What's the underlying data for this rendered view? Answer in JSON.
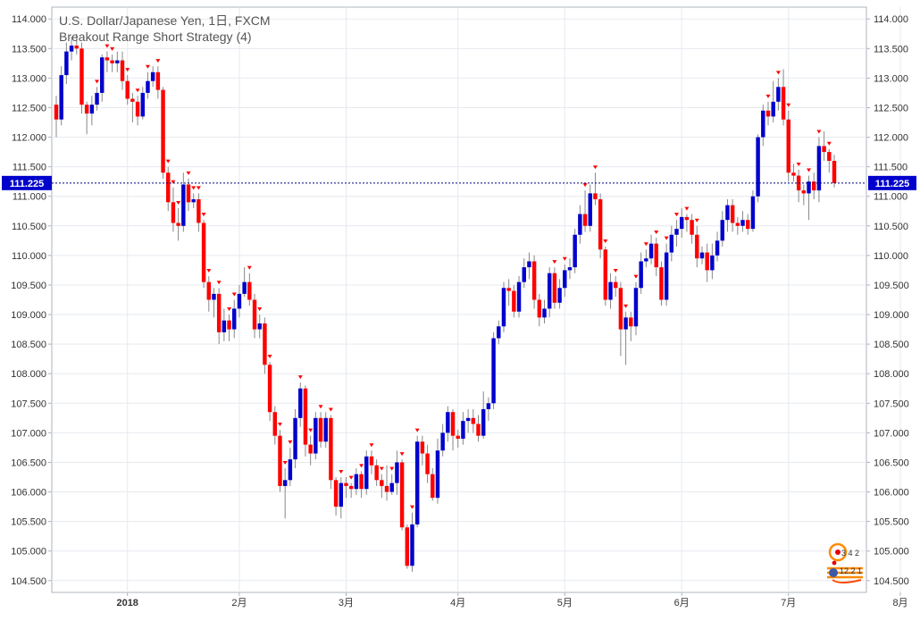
{
  "header": {
    "title": "U.S. Dollar/Japanese Yen, 1日, FXCM",
    "subtitle": "Breakout Range Short Strategy (4)"
  },
  "colors": {
    "up": "#0000cc",
    "down": "#ff0000",
    "neutral_body": "#8a00aa",
    "wick": "#888888",
    "grid": "#e6e9ef",
    "price_line": "#000080",
    "price_label_bg": "#0000cc",
    "signal": "#ff0000"
  },
  "logo": {
    "top_digits": "3 4 2",
    "bottom_digits": "12.2 1"
  },
  "chart_data": {
    "type": "candlestick",
    "title": "U.S. Dollar/Japanese Yen, 1日, FXCM",
    "subtitle": "Breakout Range Short Strategy (4)",
    "ylim": [
      104.3,
      114.2
    ],
    "y_ticks": [
      "114.000",
      "113.500",
      "113.000",
      "112.500",
      "112.000",
      "111.500",
      "111.000",
      "110.500",
      "110.000",
      "109.500",
      "109.000",
      "108.500",
      "108.000",
      "107.500",
      "107.000",
      "106.500",
      "106.000",
      "105.500",
      "105.000",
      "104.500"
    ],
    "x_labels": [
      "2018",
      "2月",
      "3月",
      "4月",
      "5月",
      "6月",
      "7月",
      "8月"
    ],
    "x_label_index": [
      14,
      36,
      57,
      79,
      100,
      123,
      144,
      166
    ],
    "current_price": "111.225",
    "grid": true,
    "candles": [
      [
        112.55,
        112.3,
        112.7,
        112.0
      ],
      [
        112.3,
        113.05,
        113.2,
        112.2
      ],
      [
        113.05,
        113.45,
        113.6,
        112.9
      ],
      [
        113.45,
        113.55,
        113.7,
        113.3
      ],
      [
        113.55,
        113.5,
        113.75,
        113.4
      ],
      [
        113.5,
        112.55,
        113.6,
        112.4
      ],
      [
        112.55,
        112.4,
        112.6,
        112.05
      ],
      [
        112.4,
        112.55,
        112.7,
        112.2
      ],
      [
        112.55,
        112.75,
        112.85,
        112.45
      ],
      [
        112.75,
        113.35,
        113.4,
        112.6
      ],
      [
        113.35,
        113.3,
        113.45,
        113.1
      ],
      [
        113.3,
        113.25,
        113.4,
        113.1
      ],
      [
        113.25,
        113.3,
        113.45,
        113.1
      ],
      [
        113.3,
        112.95,
        113.45,
        112.8
      ],
      [
        112.95,
        112.65,
        113.05,
        112.55
      ],
      [
        112.65,
        112.6,
        112.75,
        112.25
      ],
      [
        112.6,
        112.35,
        112.7,
        112.2
      ],
      [
        112.35,
        112.75,
        112.85,
        112.3
      ],
      [
        112.75,
        112.95,
        113.1,
        112.65
      ],
      [
        112.95,
        113.1,
        113.2,
        112.85
      ],
      [
        113.1,
        112.8,
        113.2,
        112.65
      ],
      [
        112.8,
        111.4,
        112.85,
        111.3
      ],
      [
        111.4,
        110.9,
        111.5,
        110.75
      ],
      [
        110.9,
        110.55,
        111.15,
        110.4
      ],
      [
        110.55,
        110.5,
        110.8,
        110.25
      ],
      [
        110.5,
        111.2,
        111.4,
        110.4
      ],
      [
        111.2,
        110.9,
        111.3,
        110.75
      ],
      [
        110.9,
        110.95,
        111.05,
        110.8
      ],
      [
        110.95,
        110.55,
        111.05,
        110.4
      ],
      [
        110.55,
        109.55,
        110.6,
        109.45
      ],
      [
        109.55,
        109.25,
        109.65,
        109.05
      ],
      [
        109.25,
        109.35,
        109.45,
        108.95
      ],
      [
        109.35,
        108.7,
        109.45,
        108.5
      ],
      [
        108.7,
        108.9,
        109.1,
        108.55
      ],
      [
        108.9,
        108.75,
        109.0,
        108.55
      ],
      [
        108.75,
        109.1,
        109.25,
        108.6
      ],
      [
        109.1,
        109.35,
        109.5,
        108.95
      ],
      [
        109.35,
        109.55,
        109.8,
        109.3
      ],
      [
        109.55,
        109.25,
        109.7,
        109.15
      ],
      [
        109.25,
        108.75,
        109.35,
        108.6
      ],
      [
        108.75,
        108.85,
        109.0,
        108.6
      ],
      [
        108.85,
        108.15,
        108.95,
        108.0
      ],
      [
        108.15,
        107.35,
        108.2,
        107.2
      ],
      [
        107.35,
        106.95,
        107.45,
        106.8
      ],
      [
        106.95,
        106.1,
        107.05,
        106.0
      ],
      [
        106.1,
        106.2,
        106.4,
        105.55
      ],
      [
        106.2,
        106.55,
        106.75,
        106.1
      ],
      [
        106.55,
        107.25,
        107.4,
        106.4
      ],
      [
        107.25,
        107.75,
        107.85,
        107.1
      ],
      [
        107.75,
        106.8,
        107.8,
        106.6
      ],
      [
        106.8,
        106.65,
        106.95,
        106.45
      ],
      [
        106.65,
        107.25,
        107.35,
        106.55
      ],
      [
        107.25,
        106.85,
        107.35,
        106.75
      ],
      [
        106.85,
        107.25,
        107.35,
        106.75
      ],
      [
        107.25,
        106.2,
        107.3,
        106.05
      ],
      [
        106.2,
        105.75,
        106.25,
        105.6
      ],
      [
        105.75,
        106.15,
        106.25,
        105.55
      ],
      [
        106.15,
        106.1,
        106.25,
        105.9
      ],
      [
        106.1,
        106.05,
        106.15,
        105.9
      ],
      [
        106.05,
        106.3,
        106.4,
        105.95
      ],
      [
        106.3,
        106.05,
        106.35,
        105.9
      ],
      [
        106.05,
        106.6,
        106.7,
        105.95
      ],
      [
        106.6,
        106.45,
        106.7,
        106.3
      ],
      [
        106.45,
        106.2,
        106.55,
        106.1
      ],
      [
        106.2,
        106.1,
        106.3,
        105.9
      ],
      [
        106.1,
        106.0,
        106.45,
        105.85
      ],
      [
        106.0,
        106.15,
        106.3,
        105.95
      ],
      [
        106.15,
        106.5,
        106.7,
        105.95
      ],
      [
        106.5,
        105.4,
        106.55,
        105.35
      ],
      [
        105.4,
        104.75,
        105.45,
        104.7
      ],
      [
        104.75,
        105.45,
        105.65,
        104.65
      ],
      [
        105.45,
        106.85,
        106.95,
        105.4
      ],
      [
        106.85,
        106.65,
        106.95,
        106.45
      ],
      [
        106.65,
        106.3,
        106.8,
        106.15
      ],
      [
        106.3,
        105.9,
        106.4,
        105.85
      ],
      [
        105.9,
        106.7,
        106.9,
        105.8
      ],
      [
        106.7,
        107.0,
        107.15,
        106.6
      ],
      [
        107.0,
        107.35,
        107.45,
        106.85
      ],
      [
        107.35,
        106.95,
        107.4,
        106.7
      ],
      [
        106.95,
        106.9,
        107.05,
        106.75
      ],
      [
        106.9,
        107.2,
        107.35,
        106.8
      ],
      [
        107.2,
        107.25,
        107.4,
        107.0
      ],
      [
        107.25,
        107.15,
        107.4,
        107.0
      ],
      [
        107.15,
        106.95,
        107.3,
        106.85
      ],
      [
        106.95,
        107.4,
        107.7,
        106.9
      ],
      [
        107.4,
        107.5,
        107.6,
        107.2
      ],
      [
        107.5,
        108.6,
        108.7,
        107.4
      ],
      [
        108.6,
        108.8,
        108.9,
        108.5
      ],
      [
        108.8,
        109.45,
        109.55,
        108.7
      ],
      [
        109.45,
        109.4,
        109.6,
        109.15
      ],
      [
        109.4,
        109.05,
        109.5,
        108.95
      ],
      [
        109.05,
        109.55,
        109.65,
        108.95
      ],
      [
        109.55,
        109.8,
        109.95,
        109.45
      ],
      [
        109.8,
        109.9,
        110.05,
        109.6
      ],
      [
        109.9,
        109.25,
        110.0,
        109.1
      ],
      [
        109.25,
        108.95,
        109.35,
        108.8
      ],
      [
        108.95,
        109.1,
        109.25,
        108.85
      ],
      [
        109.1,
        109.7,
        109.8,
        108.95
      ],
      [
        109.7,
        109.2,
        109.8,
        109.1
      ],
      [
        109.2,
        109.45,
        109.6,
        109.1
      ],
      [
        109.45,
        109.75,
        109.85,
        109.3
      ],
      [
        109.75,
        109.8,
        109.95,
        109.6
      ],
      [
        109.8,
        110.35,
        110.45,
        109.7
      ],
      [
        110.35,
        110.7,
        110.85,
        110.2
      ],
      [
        110.7,
        110.5,
        111.1,
        110.4
      ],
      [
        110.5,
        111.05,
        111.2,
        110.4
      ],
      [
        111.05,
        110.95,
        111.4,
        110.85
      ],
      [
        110.95,
        110.1,
        111.05,
        109.95
      ],
      [
        110.1,
        109.25,
        110.15,
        109.15
      ],
      [
        109.25,
        109.55,
        109.7,
        109.1
      ],
      [
        109.55,
        109.45,
        109.65,
        109.3
      ],
      [
        109.45,
        108.75,
        109.55,
        108.3
      ],
      [
        108.75,
        108.95,
        109.05,
        108.15
      ],
      [
        108.95,
        108.8,
        109.05,
        108.55
      ],
      [
        108.8,
        109.45,
        109.55,
        108.65
      ],
      [
        109.45,
        109.9,
        110.05,
        109.35
      ],
      [
        109.9,
        109.95,
        110.1,
        109.8
      ],
      [
        109.95,
        110.2,
        110.35,
        109.85
      ],
      [
        110.2,
        109.8,
        110.3,
        109.65
      ],
      [
        109.8,
        109.25,
        109.9,
        109.15
      ],
      [
        109.25,
        110.05,
        110.2,
        109.15
      ],
      [
        110.05,
        110.35,
        110.5,
        109.9
      ],
      [
        110.35,
        110.45,
        110.6,
        110.15
      ],
      [
        110.45,
        110.65,
        110.8,
        110.3
      ],
      [
        110.65,
        110.6,
        110.7,
        110.4
      ],
      [
        110.6,
        110.35,
        110.7,
        110.2
      ],
      [
        110.35,
        109.95,
        110.5,
        109.8
      ],
      [
        109.95,
        110.05,
        110.15,
        109.85
      ],
      [
        110.05,
        109.75,
        110.2,
        109.55
      ],
      [
        109.75,
        110.0,
        110.2,
        109.6
      ],
      [
        110.0,
        110.25,
        110.4,
        109.9
      ],
      [
        110.25,
        110.6,
        110.75,
        110.15
      ],
      [
        110.6,
        110.85,
        110.95,
        110.4
      ],
      [
        110.85,
        110.55,
        110.95,
        110.4
      ],
      [
        110.55,
        110.5,
        110.65,
        110.35
      ],
      [
        110.5,
        110.6,
        110.75,
        110.4
      ],
      [
        110.6,
        110.45,
        110.7,
        110.35
      ],
      [
        110.45,
        111.0,
        111.1,
        110.4
      ],
      [
        111.0,
        112.0,
        112.05,
        110.9
      ],
      [
        112.0,
        112.45,
        112.55,
        111.85
      ],
      [
        112.45,
        112.35,
        112.6,
        112.2
      ],
      [
        112.35,
        112.6,
        112.95,
        112.25
      ],
      [
        112.6,
        112.85,
        113.0,
        112.45
      ],
      [
        112.85,
        112.3,
        113.15,
        112.2
      ],
      [
        112.3,
        111.4,
        112.45,
        111.25
      ],
      [
        111.4,
        111.35,
        111.55,
        111.25
      ],
      [
        111.35,
        111.1,
        111.45,
        110.9
      ],
      [
        111.1,
        111.05,
        111.2,
        110.85
      ],
      [
        111.05,
        111.25,
        111.35,
        110.6
      ],
      [
        111.25,
        111.1,
        111.4,
        110.95
      ],
      [
        111.1,
        111.85,
        112.0,
        110.9
      ],
      [
        111.85,
        111.75,
        112.1,
        111.6
      ],
      [
        111.75,
        111.6,
        111.8,
        111.4
      ],
      [
        111.6,
        111.225,
        111.7,
        111.15
      ]
    ],
    "signals_index": [
      8,
      10,
      11,
      14,
      16,
      18,
      20,
      22,
      23,
      24,
      26,
      27,
      28,
      29,
      30,
      32,
      34,
      35,
      38,
      40,
      42,
      44,
      45,
      46,
      48,
      50,
      52,
      54,
      56,
      58,
      60,
      62,
      64,
      66,
      68,
      70,
      71,
      98,
      100,
      104,
      106,
      108,
      110,
      112,
      114,
      116,
      118,
      120,
      122,
      124,
      126,
      140,
      142,
      144,
      146,
      148,
      150,
      152,
      154,
      156,
      158,
      160
    ],
    "price_range_note": ""
  }
}
